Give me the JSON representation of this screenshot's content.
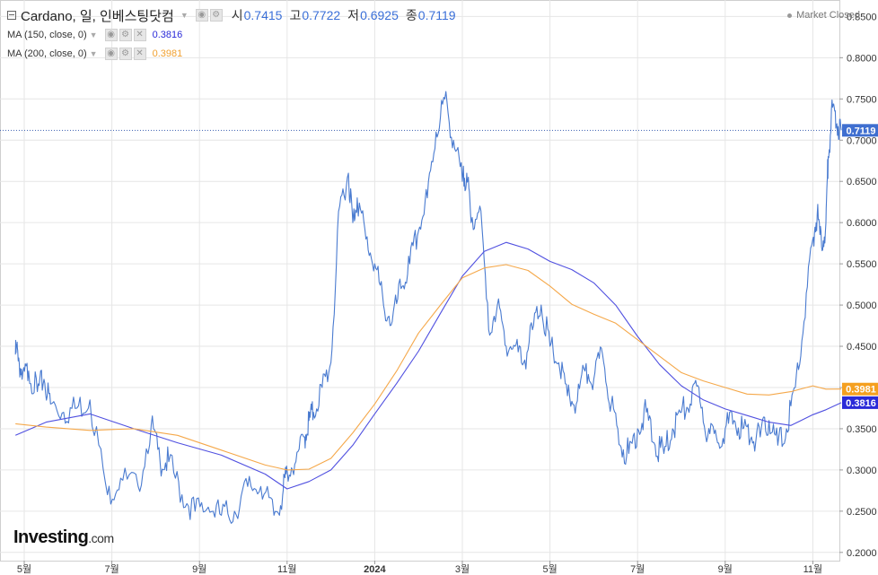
{
  "header": {
    "title": "Cardano, 일, 인베스팅닷컴",
    "ohlc": [
      {
        "label": "시",
        "value": "0.7415"
      },
      {
        "label": "고",
        "value": "0.7722"
      },
      {
        "label": "저",
        "value": "0.6925"
      },
      {
        "label": "종",
        "value": "0.7119"
      }
    ],
    "market_status": "Market Closed"
  },
  "indicators": [
    {
      "label": "MA (150, close, 0)",
      "value": "0.3816",
      "color": "#2a2ad8"
    },
    {
      "label": "MA (200, close, 0)",
      "value": "0.3981",
      "color": "#f0a030"
    }
  ],
  "logo": {
    "main": "Investing",
    "suffix": ".com"
  },
  "colors": {
    "price": "#4a7bd0",
    "ma150": "#5050e0",
    "ma200": "#f5a84a",
    "grid": "#e6e6e6"
  },
  "chart_data": {
    "type": "line",
    "y_axis": {
      "position": "right",
      "range": [
        0.19,
        0.87
      ],
      "ticks": [
        "0.2000",
        "0.2500",
        "0.3000",
        "0.3500",
        "0.4000",
        "0.4500",
        "0.5000",
        "0.5500",
        "0.6000",
        "0.6500",
        "0.7000",
        "0.7500",
        "0.8000",
        "0.8500"
      ]
    },
    "x_axis": {
      "ticks": [
        "5월",
        "7월",
        "9월",
        "11월",
        "2024",
        "3월",
        "5월",
        "7월",
        "9월",
        "11월"
      ],
      "tick_months": [
        0,
        2,
        4,
        6,
        8,
        10,
        12,
        14,
        16,
        18
      ]
    },
    "last_price_label": "0.7119",
    "ma_labels": [
      {
        "text": "0.3981",
        "value": 0.3981,
        "color": "#f5a020"
      },
      {
        "text": "0.3816",
        "value": 0.3816,
        "color": "#2a2ad8"
      }
    ],
    "series": [
      {
        "name": "Cardano",
        "role": "price",
        "x": [
          -0.2,
          -0.15,
          -0.05,
          0.1,
          0.3,
          0.45,
          0.6,
          0.9,
          1.2,
          1.5,
          1.9,
          2.2,
          2.6,
          2.9,
          3.1,
          3.3,
          3.6,
          3.9,
          4.2,
          4.5,
          4.8,
          5.1,
          5.4,
          5.7,
          5.9,
          6.0,
          6.2,
          6.4,
          6.5,
          6.6,
          6.8,
          7.0,
          7.2,
          7.4,
          7.5,
          7.6,
          7.8,
          8.0,
          8.2,
          8.4,
          8.6,
          8.8,
          9.0,
          9.2,
          9.4,
          9.6,
          9.8,
          10.0,
          10.1,
          10.2,
          10.4,
          10.6,
          10.8,
          11.0,
          11.2,
          11.4,
          11.6,
          11.8,
          12.0,
          12.2,
          12.4,
          12.6,
          12.8,
          13.0,
          13.2,
          13.4,
          13.6,
          13.8,
          14.0,
          14.2,
          14.4,
          14.6,
          14.8,
          15.0,
          15.2,
          15.4,
          15.6,
          15.8,
          16.0,
          16.2,
          16.4,
          16.6,
          16.8,
          17.0,
          17.2,
          17.4,
          17.6,
          17.8,
          18.0,
          18.1,
          18.2,
          18.3,
          18.35,
          18.45,
          18.55,
          18.65
        ],
        "y": [
          0.44,
          0.445,
          0.41,
          0.42,
          0.395,
          0.41,
          0.38,
          0.37,
          0.375,
          0.385,
          0.27,
          0.29,
          0.28,
          0.355,
          0.31,
          0.31,
          0.27,
          0.25,
          0.255,
          0.245,
          0.25,
          0.28,
          0.28,
          0.245,
          0.27,
          0.3,
          0.31,
          0.34,
          0.36,
          0.37,
          0.4,
          0.43,
          0.62,
          0.66,
          0.6,
          0.63,
          0.58,
          0.55,
          0.5,
          0.48,
          0.52,
          0.55,
          0.59,
          0.63,
          0.71,
          0.75,
          0.7,
          0.65,
          0.66,
          0.6,
          0.62,
          0.47,
          0.5,
          0.45,
          0.45,
          0.43,
          0.47,
          0.5,
          0.45,
          0.43,
          0.39,
          0.38,
          0.42,
          0.41,
          0.44,
          0.38,
          0.33,
          0.32,
          0.35,
          0.37,
          0.33,
          0.32,
          0.35,
          0.37,
          0.38,
          0.4,
          0.34,
          0.34,
          0.35,
          0.36,
          0.35,
          0.34,
          0.34,
          0.36,
          0.33,
          0.35,
          0.4,
          0.48,
          0.58,
          0.61,
          0.57,
          0.6,
          0.68,
          0.74,
          0.72,
          0.7119
        ]
      },
      {
        "name": "MA (150, close, 0)",
        "role": "ma150",
        "x": [
          -0.2,
          0.5,
          1.5,
          2.5,
          3.5,
          4.5,
          5.5,
          6.0,
          6.5,
          7.0,
          7.5,
          8.0,
          8.5,
          9.0,
          9.5,
          10.0,
          10.5,
          11.0,
          11.5,
          12.0,
          12.5,
          13.0,
          13.5,
          14.0,
          14.5,
          15.0,
          15.5,
          16.0,
          16.5,
          17.0,
          17.5,
          18.0,
          18.3,
          18.65
        ],
        "y": [
          0.342,
          0.358,
          0.368,
          0.35,
          0.333,
          0.318,
          0.295,
          0.277,
          0.286,
          0.3,
          0.33,
          0.368,
          0.405,
          0.444,
          0.49,
          0.535,
          0.565,
          0.576,
          0.568,
          0.553,
          0.543,
          0.527,
          0.5,
          0.462,
          0.428,
          0.402,
          0.385,
          0.374,
          0.366,
          0.358,
          0.354,
          0.367,
          0.373,
          0.3816
        ]
      },
      {
        "name": "MA (200, close, 0)",
        "role": "ma200",
        "x": [
          -0.2,
          0.5,
          1.5,
          2.5,
          3.5,
          4.5,
          5.5,
          6.0,
          6.5,
          7.0,
          7.5,
          8.0,
          8.5,
          9.0,
          9.5,
          10.0,
          10.5,
          11.0,
          11.5,
          12.0,
          12.5,
          13.0,
          13.5,
          14.0,
          14.5,
          15.0,
          15.5,
          16.0,
          16.5,
          17.0,
          17.5,
          18.0,
          18.3,
          18.65
        ],
        "y": [
          0.356,
          0.352,
          0.348,
          0.35,
          0.342,
          0.324,
          0.306,
          0.3,
          0.301,
          0.314,
          0.345,
          0.38,
          0.42,
          0.466,
          0.5,
          0.533,
          0.545,
          0.549,
          0.542,
          0.523,
          0.501,
          0.489,
          0.478,
          0.458,
          0.438,
          0.418,
          0.408,
          0.4,
          0.392,
          0.391,
          0.395,
          0.402,
          0.398,
          0.3981
        ]
      }
    ]
  }
}
